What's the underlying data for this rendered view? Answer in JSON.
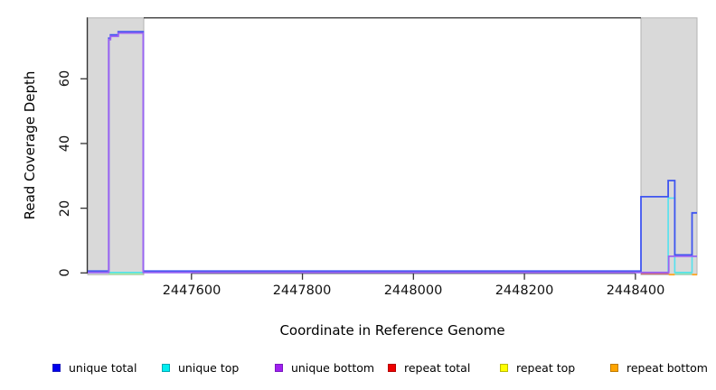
{
  "chart_data": {
    "type": "line",
    "title": "",
    "xlabel": "Coordinate in Reference Genome",
    "ylabel": "Read Coverage Depth",
    "xlim": [
      2447413,
      2448511
    ],
    "ylim": [
      0,
      79
    ],
    "x_ticks": [
      2447600,
      2447800,
      2448000,
      2448200,
      2448400
    ],
    "y_ticks": [
      0,
      20,
      40,
      60
    ],
    "grid": false,
    "legend_position": "bottom",
    "masked_region_color": "#d9d9d9",
    "masked_regions": [
      [
        2447413,
        2447514
      ],
      [
        2448410,
        2448511
      ]
    ],
    "series": [
      {
        "id": "unique_total",
        "name": "unique total",
        "color": "#0000ee",
        "segments": [
          [
            [
              2447413,
              0
            ],
            [
              2447451,
              72
            ],
            [
              2447454,
              73
            ],
            [
              2447468,
              74
            ],
            [
              2447513,
              0
            ],
            [
              2448410,
              23
            ],
            [
              2448459,
              28
            ],
            [
              2448471,
              5
            ],
            [
              2448502,
              18
            ],
            [
              2448511,
              18
            ]
          ]
        ]
      },
      {
        "id": "unique_top",
        "name": "unique top",
        "color": "#00eef0",
        "segments": [
          [
            [
              2447413,
              0
            ],
            [
              2448459,
              23
            ],
            [
              2448471,
              0
            ],
            [
              2448502,
              5
            ],
            [
              2448511,
              5
            ]
          ]
        ]
      },
      {
        "id": "unique_bottom",
        "name": "unique bottom",
        "color": "#a020f0",
        "segments": [
          [
            [
              2447413,
              0
            ],
            [
              2447451,
              72
            ],
            [
              2447454,
              73
            ],
            [
              2447468,
              74
            ],
            [
              2447513,
              0
            ],
            [
              2448460,
              5
            ],
            [
              2448511,
              5
            ]
          ]
        ]
      },
      {
        "id": "repeat_total",
        "name": "repeat total",
        "color": "#ee0000",
        "segments": [
          [
            [
              2448410,
              0
            ],
            [
              2448460,
              0
            ]
          ]
        ]
      },
      {
        "id": "repeat_top",
        "name": "repeat top",
        "color": "#ffff00",
        "segments": [
          [
            [
              2447451,
              0
            ],
            [
              2447513,
              0
            ]
          ],
          [
            [
              2448471,
              0
            ],
            [
              2448502,
              0
            ]
          ]
        ]
      },
      {
        "id": "repeat_bottom",
        "name": "repeat bottom",
        "color": "#ffa500",
        "segments": [
          [
            [
              2448460,
              0
            ],
            [
              2448471,
              0
            ]
          ],
          [
            [
              2448502,
              0
            ],
            [
              2448511,
              0
            ]
          ]
        ]
      }
    ],
    "overlap_blend_segments": [
      {
        "from": 2447451,
        "to": 2447513,
        "depth": 0,
        "color": "#a9e6a2"
      },
      {
        "from": 2448471,
        "to": 2448502,
        "depth": 0,
        "color": "#8fe0bb"
      }
    ]
  }
}
